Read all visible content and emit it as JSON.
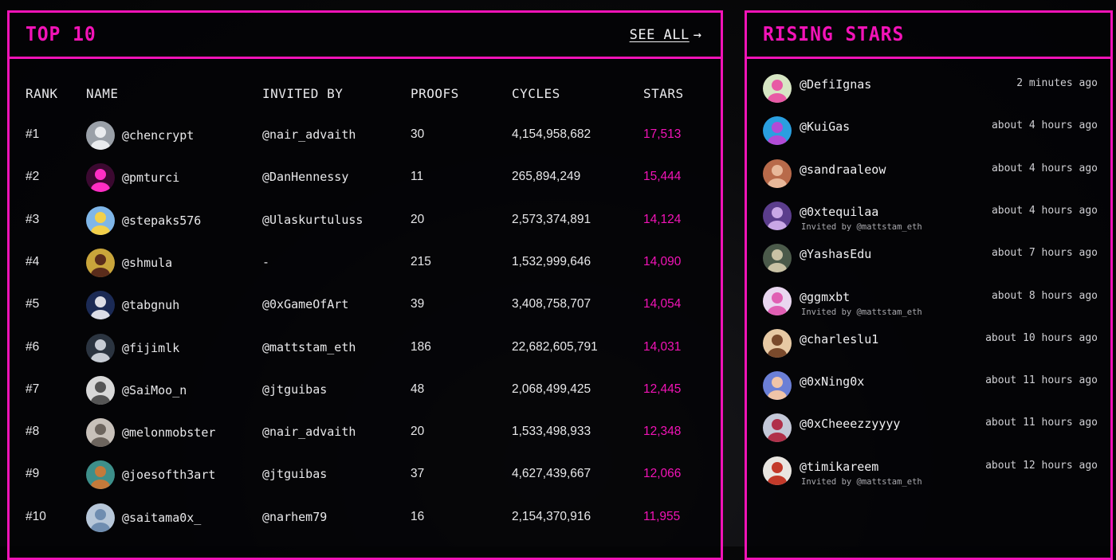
{
  "top10": {
    "title": "TOP 10",
    "see_all": "SEE ALL",
    "columns": [
      "RANK",
      "NAME",
      "INVITED BY",
      "PROOFS",
      "CYCLES",
      "STARS"
    ],
    "rows": [
      {
        "rank": "#1",
        "name": "@chencrypt",
        "invited_by": "@nair_advaith",
        "proofs": "30",
        "cycles": "4,154,958,682",
        "stars": "17,513",
        "avatar_bg": "#9aa0a8",
        "avatar_fg": "#e9ebee"
      },
      {
        "rank": "#2",
        "name": "@pmturci",
        "invited_by": "@DanHennessy",
        "proofs": "11",
        "cycles": "265,894,249",
        "stars": "15,444",
        "avatar_bg": "#3b0930",
        "avatar_fg": "#ff2ec4"
      },
      {
        "rank": "#3",
        "name": "@stepaks576",
        "invited_by": "@Ulaskurtuluss",
        "proofs": "20",
        "cycles": "2,573,374,891",
        "stars": "14,124",
        "avatar_bg": "#7fb6e8",
        "avatar_fg": "#f3d04a"
      },
      {
        "rank": "#4",
        "name": "@shmula",
        "invited_by": "-",
        "proofs": "215",
        "cycles": "1,532,999,646",
        "stars": "14,090",
        "avatar_bg": "#c9a53b",
        "avatar_fg": "#5a2c1b"
      },
      {
        "rank": "#5",
        "name": "@tabgnuh",
        "invited_by": "@0xGameOfArt",
        "proofs": "39",
        "cycles": "3,408,758,707",
        "stars": "14,054",
        "avatar_bg": "#1b2a55",
        "avatar_fg": "#dcdde6"
      },
      {
        "rank": "#6",
        "name": "@fijimlk",
        "invited_by": "@mattstam_eth",
        "proofs": "186",
        "cycles": "22,682,605,791",
        "stars": "14,031",
        "avatar_bg": "#2b3440",
        "avatar_fg": "#c7ccd4"
      },
      {
        "rank": "#7",
        "name": "@SaiMoo_n",
        "invited_by": "@jtguibas",
        "proofs": "48",
        "cycles": "2,068,499,425",
        "stars": "12,445",
        "avatar_bg": "#d8d8d8",
        "avatar_fg": "#555"
      },
      {
        "rank": "#8",
        "name": "@melonmobster",
        "invited_by": "@nair_advaith",
        "proofs": "20",
        "cycles": "1,533,498,933",
        "stars": "12,348",
        "avatar_bg": "#c8c1ba",
        "avatar_fg": "#6d655e"
      },
      {
        "rank": "#9",
        "name": "@joesofth3art",
        "invited_by": "@jtguibas",
        "proofs": "37",
        "cycles": "4,627,439,667",
        "stars": "12,066",
        "avatar_bg": "#3d8f8a",
        "avatar_fg": "#c47a3a"
      },
      {
        "rank": "#10",
        "name": "@saitama0x_",
        "invited_by": "@narhem79",
        "proofs": "16",
        "cycles": "2,154,370,916",
        "stars": "11,955",
        "avatar_bg": "#b7c7d9",
        "avatar_fg": "#6f8db0"
      }
    ]
  },
  "rising": {
    "title": "RISING STARS",
    "items": [
      {
        "handle": "@DefiIgnas",
        "time": "2 minutes ago",
        "invited": "",
        "avatar_bg": "#d7e6c4",
        "avatar_fg": "#e85aa5"
      },
      {
        "handle": "@KuiGas",
        "time": "about 4 hours ago",
        "invited": "",
        "avatar_bg": "#2a9fe0",
        "avatar_fg": "#b24bd6"
      },
      {
        "handle": "@sandraaleow",
        "time": "about 4 hours ago",
        "invited": "",
        "avatar_bg": "#b86a4a",
        "avatar_fg": "#e8b89a"
      },
      {
        "handle": "@0xtequilaa",
        "time": "about 4 hours ago",
        "invited": "Invited by @mattstam_eth",
        "avatar_bg": "#5b3d8c",
        "avatar_fg": "#c9a7e6"
      },
      {
        "handle": "@YashasEdu",
        "time": "about 7 hours ago",
        "invited": "",
        "avatar_bg": "#4b5a4a",
        "avatar_fg": "#c9c2a5"
      },
      {
        "handle": "@ggmxbt",
        "time": "about 8 hours ago",
        "invited": "Invited by @mattstam_eth",
        "avatar_bg": "#e9d6ef",
        "avatar_fg": "#e05fb3"
      },
      {
        "handle": "@charleslu1",
        "time": "about 10 hours ago",
        "invited": "",
        "avatar_bg": "#e7c9a4",
        "avatar_fg": "#7a4a2c"
      },
      {
        "handle": "@0xNing0x",
        "time": "about 11 hours ago",
        "invited": "",
        "avatar_bg": "#6b7fd6",
        "avatar_fg": "#f0c4a8"
      },
      {
        "handle": "@0xCheeezzyyyy",
        "time": "about 11 hours ago",
        "invited": "",
        "avatar_bg": "#c4c8d8",
        "avatar_fg": "#b0304a"
      },
      {
        "handle": "@timikareem",
        "time": "about 12 hours ago",
        "invited": "Invited by @mattstam_eth",
        "avatar_bg": "#e9e6e1",
        "avatar_fg": "#c33a2a"
      }
    ]
  },
  "icons": {
    "see_all_arrow": "arrow-right-icon",
    "avatar": "user-avatar-icon"
  }
}
